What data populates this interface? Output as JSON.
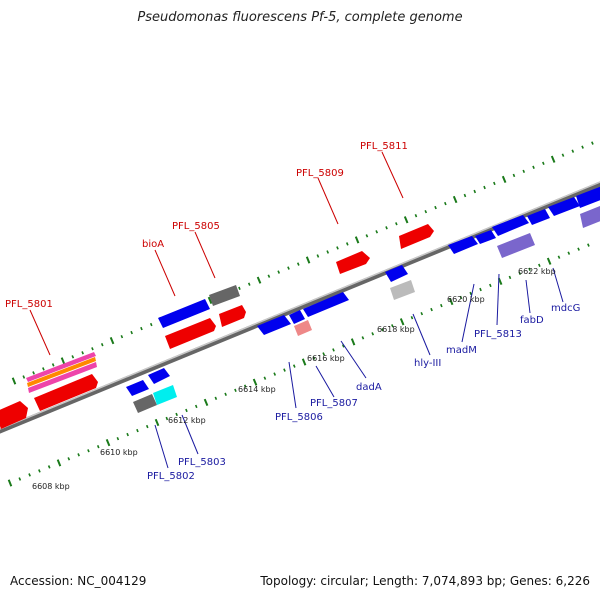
{
  "title": "Pseudomonas fluorescens Pf-5, complete genome",
  "footer": {
    "accession": "Accession: NC_004129",
    "summary": "Topology: circular; Length: 7,074,893 bp; Genes: 6,226"
  },
  "colors": {
    "forward_gene": "#ff0000",
    "reverse_gene": "#0000ff",
    "forward_label": "#cc0000",
    "reverse_label": "#1a1aa0",
    "backbone": "#888888",
    "ruler_tick": "#1a7a1a",
    "grey_feature": "#666666",
    "cyan_feature": "#00ffff",
    "purple_feature": "#7a66cc",
    "pink_feature": "#ee8888"
  },
  "kbp_labels": [
    "6608 kbp",
    "6610 kbp",
    "6612 kbp",
    "6614 kbp",
    "6616 kbp",
    "6618 kbp",
    "6620 kbp",
    "6622 kbp"
  ],
  "forward_labels": [
    "PFL_5801",
    "bioA",
    "PFL_5805",
    "PFL_5809",
    "PFL_5811"
  ],
  "reverse_labels": [
    "PFL_5802",
    "PFL_5803",
    "PFL_5806",
    "PFL_5807",
    "dadA",
    "hly-III",
    "madM",
    "PFL_5813",
    "fabD",
    "mdcG"
  ]
}
